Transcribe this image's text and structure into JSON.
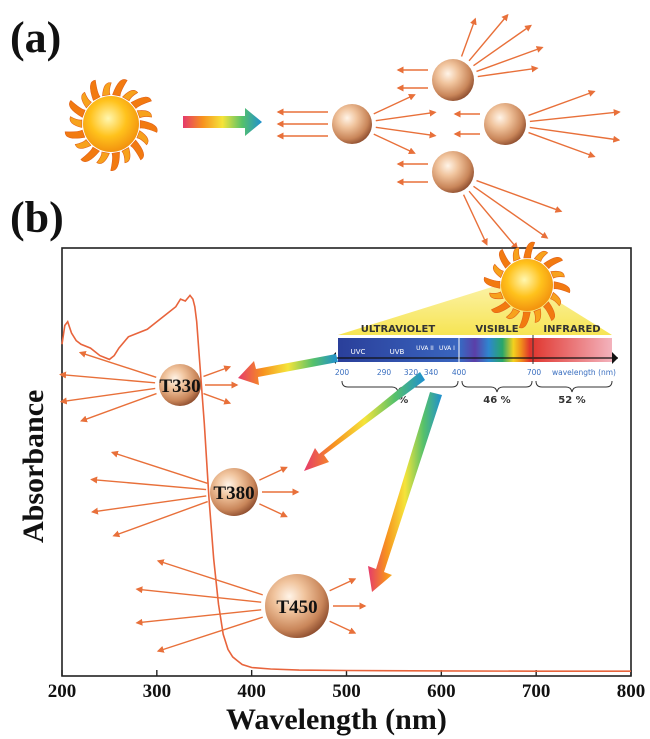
{
  "panel_a": {
    "label": "(a)"
  },
  "panel_b": {
    "label": "(b)",
    "particles": [
      {
        "name": "T330"
      },
      {
        "name": "T380"
      },
      {
        "name": "T450"
      }
    ],
    "spectrum": {
      "bands": [
        "UVC",
        "UVB",
        "UVA II",
        "UVA I"
      ],
      "regions": [
        "ULTRAVIOLET",
        "VISIBLE",
        "INFRARED"
      ],
      "ticks": [
        "200",
        "290",
        "320",
        "340",
        "400",
        "700"
      ],
      "wavelength_label": "wavelength (nm)",
      "percentages": [
        "4 %",
        "46 %",
        "52 %"
      ]
    }
  },
  "chart_data": {
    "type": "line",
    "xlabel": "Wavelength (nm)",
    "ylabel": "Absorbance",
    "xlim": [
      200,
      800
    ],
    "xticks": [
      "200",
      "300",
      "400",
      "500",
      "600",
      "700",
      "800"
    ],
    "series": [
      {
        "color": "#e8643c",
        "x": [
          200,
          203,
          206,
          210,
          215,
          220,
          230,
          240,
          250,
          255,
          260,
          270,
          280,
          290,
          300,
          310,
          320,
          325,
          330,
          335,
          338,
          340,
          342,
          345,
          350,
          355,
          360,
          365,
          370,
          375,
          380,
          385,
          390,
          400,
          420,
          450,
          500,
          600,
          700,
          800
        ],
        "y": [
          0.87,
          0.92,
          0.93,
          0.9,
          0.88,
          0.87,
          0.86,
          0.84,
          0.83,
          0.84,
          0.86,
          0.89,
          0.9,
          0.91,
          0.93,
          0.95,
          0.97,
          0.99,
          0.985,
          1.0,
          0.99,
          0.97,
          0.93,
          0.83,
          0.66,
          0.46,
          0.3,
          0.18,
          0.1,
          0.06,
          0.04,
          0.03,
          0.02,
          0.012,
          0.008,
          0.005,
          0.004,
          0.003,
          0.002,
          0.002
        ]
      }
    ]
  }
}
